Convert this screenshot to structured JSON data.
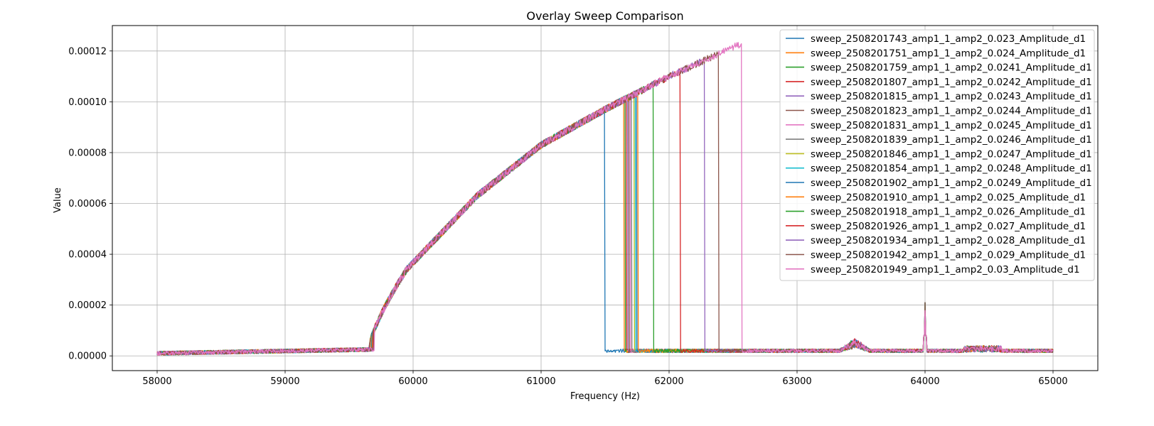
{
  "chart_data": {
    "type": "line",
    "title": "Overlay Sweep Comparison",
    "xlabel": "Frequency (Hz)",
    "ylabel": "Value",
    "xlim": [
      57650,
      65350
    ],
    "ylim": [
      -5.8e-06,
      0.00013
    ],
    "xticks": [
      58000,
      59000,
      60000,
      61000,
      62000,
      63000,
      64000,
      65000
    ],
    "xtick_labels": [
      "58000",
      "59000",
      "60000",
      "61000",
      "62000",
      "63000",
      "64000",
      "65000"
    ],
    "yticks": [
      0,
      2e-05,
      4e-05,
      6e-05,
      8e-05,
      0.0001,
      0.00012
    ],
    "ytick_labels": [
      "0.00000",
      "0.00002",
      "0.00004",
      "0.00006",
      "0.00008",
      "0.00010",
      "0.00012"
    ],
    "grid": true,
    "legend_position": "top-right",
    "series": [
      {
        "name": "sweep_2508201743_amp1_1_amp2_0.023_Amplitude_d1",
        "color": "#1f77b4",
        "drop_hz": 61500
      },
      {
        "name": "sweep_2508201751_amp1_1_amp2_0.024_Amplitude_d1",
        "color": "#ff7f0e",
        "drop_hz": 61650
      },
      {
        "name": "sweep_2508201759_amp1_1_amp2_0.0241_Amplitude_d1",
        "color": "#2ca02c",
        "drop_hz": 61660
      },
      {
        "name": "sweep_2508201807_amp1_1_amp2_0.0242_Amplitude_d1",
        "color": "#d62728",
        "drop_hz": 61670
      },
      {
        "name": "sweep_2508201815_amp1_1_amp2_0.0243_Amplitude_d1",
        "color": "#9467bd",
        "drop_hz": 61680
      },
      {
        "name": "sweep_2508201823_amp1_1_amp2_0.0244_Amplitude_d1",
        "color": "#8c564b",
        "drop_hz": 61690
      },
      {
        "name": "sweep_2508201831_amp1_1_amp2_0.0245_Amplitude_d1",
        "color": "#e377c2",
        "drop_hz": 61700
      },
      {
        "name": "sweep_2508201839_amp1_1_amp2_0.0246_Amplitude_d1",
        "color": "#7f7f7f",
        "drop_hz": 61710
      },
      {
        "name": "sweep_2508201846_amp1_1_amp2_0.0247_Amplitude_d1",
        "color": "#bcbd22",
        "drop_hz": 61730
      },
      {
        "name": "sweep_2508201854_amp1_1_amp2_0.0248_Amplitude_d1",
        "color": "#17becf",
        "drop_hz": 61740
      },
      {
        "name": "sweep_2508201902_amp1_1_amp2_0.0249_Amplitude_d1",
        "color": "#1f77b4",
        "drop_hz": 61750
      },
      {
        "name": "sweep_2508201910_amp1_1_amp2_0.025_Amplitude_d1",
        "color": "#ff7f0e",
        "drop_hz": 61760
      },
      {
        "name": "sweep_2508201918_amp1_1_amp2_0.026_Amplitude_d1",
        "color": "#2ca02c",
        "drop_hz": 61880
      },
      {
        "name": "sweep_2508201926_amp1_1_amp2_0.027_Amplitude_d1",
        "color": "#d62728",
        "drop_hz": 62090
      },
      {
        "name": "sweep_2508201934_amp1_1_amp2_0.028_Amplitude_d1",
        "color": "#9467bd",
        "drop_hz": 62280
      },
      {
        "name": "sweep_2508201942_amp1_1_amp2_0.029_Amplitude_d1",
        "color": "#8c564b",
        "drop_hz": 62390
      },
      {
        "name": "sweep_2508201949_amp1_1_amp2_0.03_Amplitude_d1",
        "color": "#e377c2",
        "drop_hz": 62570
      }
    ],
    "model": {
      "x_start": 58000,
      "x_end": 65000,
      "x_step": 5,
      "baseline_low": 1e-06,
      "baseline_high": 2.5e-06,
      "rise_start_hz": 59650,
      "rise_end_hz": 59950,
      "rise_end_value": 3.4e-05,
      "upper_curve_anchors": [
        [
          59950,
          3.4e-05
        ],
        [
          60500,
          6.3e-05
        ],
        [
          61000,
          8.3e-05
        ],
        [
          61500,
          9.7e-05
        ],
        [
          62000,
          0.00011
        ],
        [
          62570,
          0.000123
        ]
      ],
      "post_drop_level": 2e-06,
      "spike_hz": 64000,
      "spike_value": 2.1e-05,
      "bump_hz": 63450,
      "bump_value": 5e-06
    }
  }
}
